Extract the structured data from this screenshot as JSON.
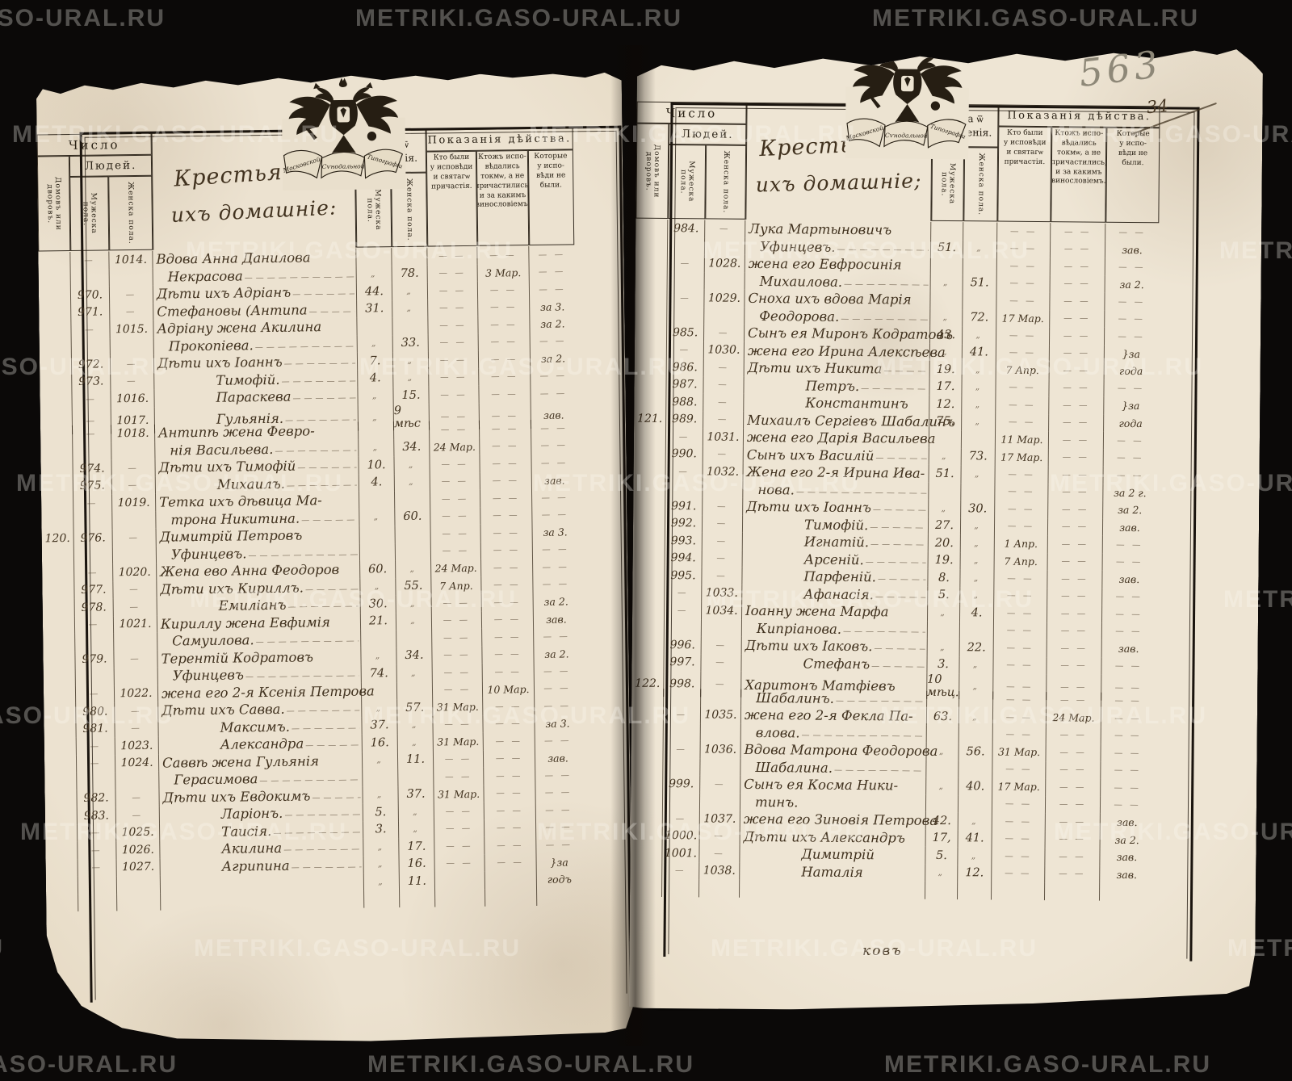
{
  "meta": {
    "archive_watermark": "METRIKI.GASO-URAL.RU",
    "pencil_folio": "563",
    "ink_folio": "34",
    "catchword": "ковъ"
  },
  "emblem": {
    "ribbon": [
      "Московской",
      "Сѵнодальной",
      "Типографіи"
    ]
  },
  "header": {
    "number": "Число",
    "people": "Людей.",
    "households": "Домовъ или дворовъ.",
    "male": "Мужеска пола.",
    "female": "Женска пола.",
    "age": "Лѣта ѿ\nрожденія.",
    "acts": "Показанія дѣйства.",
    "act_confessed": "Кто были\nу исповѣди\nи святагѡ\nпричастія.",
    "act_only": "Ктожъ испо-\nвѣдались\nтокмѡ, а не\nпричастились,\nи за какимъ\nвинословіемъ.",
    "act_absent": "Которые\nу испо-\nвѣди не\nбыли."
  },
  "pages": [
    {
      "side": "left",
      "title": [
        "Крестьяне и",
        "ихъ домашніе:"
      ],
      "rows": [
        {
          "c2": "—",
          "c3": "1014.",
          "n": "Вдова Анна Данилова"
        },
        {
          "n": "Некрасова",
          "i": 2,
          "t": 1,
          "af": "78.",
          "k2": "3 Мар."
        },
        {
          "c2": "970.",
          "c3": "—",
          "n": "Дѣти ихъ Адріанъ",
          "t": 1,
          "am": "44."
        },
        {
          "c2": "971.",
          "c3": "—",
          "n": "Стефановы (Антипа",
          "t": 1,
          "am": "31.",
          "k3": "за 3."
        },
        {
          "c2": "—",
          "c3": "1015.",
          "n": "Адріану жена Акилина",
          "k3": "за 2."
        },
        {
          "n": "Прокопіева.",
          "i": 2,
          "t": 1,
          "af": "33."
        },
        {
          "c2": "972.",
          "c3": "—",
          "n": "Дѣти ихъ Іоаннъ",
          "t": 1,
          "am": "7.",
          "k3": "за 2."
        },
        {
          "c2": "973.",
          "c3": "—",
          "n": "Тимофій.",
          "i": 1,
          "t": 1,
          "am": "4."
        },
        {
          "c2": "—",
          "c3": "1016.",
          "n": "Параскева",
          "i": 1,
          "t": 1,
          "af": "15."
        },
        {
          "c2": "—",
          "c3": "1017.",
          "n": "Гульянія.",
          "i": 1,
          "t": 1,
          "af": "9 мѣс",
          "k3": "зав."
        },
        {
          "c2": "—",
          "c3": "1018.",
          "n": "Антипѣ жена Февро-"
        },
        {
          "n": "нія Васильева.",
          "i": 2,
          "t": 1,
          "af": "34.",
          "k1": "24 Мар."
        },
        {
          "c2": "974.",
          "c3": "—",
          "n": "Дѣти ихъ Тимофій",
          "t": 1,
          "am": "10."
        },
        {
          "c2": "975.",
          "c3": "—",
          "n": "Михаилъ.",
          "i": 1,
          "t": 1,
          "am": "4.",
          "k3": "зав."
        },
        {
          "c2": "—",
          "c3": "1019.",
          "n": "Тетка ихъ дѣвица Ма-"
        },
        {
          "n": "трона Никитина.",
          "i": 2,
          "t": 1,
          "af": "60."
        },
        {
          "c1": "120.",
          "c2": "976.",
          "c3": "—",
          "n": "Димитрій Петровъ",
          "k3": "за 3."
        },
        {
          "n": "Уфинцевъ.",
          "i": 2,
          "t": 1
        },
        {
          "c2": "—",
          "c3": "1020.",
          "n": "Жена ево Анна Феодоров",
          "am": "60.",
          "k1": "24 Мар."
        },
        {
          "c2": "977.",
          "c3": "—",
          "n": "Дѣти ихъ Кириллъ.",
          "t": 1,
          "af": "55.",
          "k1": "7 Апр."
        },
        {
          "c2": "978.",
          "c3": "—",
          "n": "Емиліанъ",
          "i": 1,
          "t": 1,
          "am": "30.",
          "k3": "за 2."
        },
        {
          "c2": "—",
          "c3": "1021.",
          "n": "Кириллу жена Евфимія",
          "am": "21.",
          "k3": "зав."
        },
        {
          "n": "Самуилова.",
          "i": 2,
          "t": 1
        },
        {
          "c2": "979.",
          "c3": "—",
          "n": "Терентій Кодратовъ",
          "af": "34.",
          "k3": "за 2."
        },
        {
          "n": "Уфинцевъ",
          "i": 2,
          "t": 1,
          "am": "74."
        },
        {
          "c2": "—",
          "c3": "1022.",
          "n": "жена его 2-я Ксенія Петрова",
          "k2": "10 Мар."
        },
        {
          "c2": "980.",
          "c3": "—",
          "n": "Дѣти ихъ Савва.",
          "t": 1,
          "af": "57.",
          "k1": "31 Мар."
        },
        {
          "c2": "981.",
          "c3": "—",
          "n": "Максимъ.",
          "i": 1,
          "t": 1,
          "am": "37.",
          "k3": "за 3."
        },
        {
          "c2": "—",
          "c3": "1023.",
          "n": "Александра",
          "i": 1,
          "t": 1,
          "am": "16.",
          "k1": "31 Мар."
        },
        {
          "c2": "—",
          "c3": "1024.",
          "n": "Саввѣ жена Гульянія",
          "af": "11.",
          "k3": "зав."
        },
        {
          "n": "Герасимова",
          "i": 2,
          "t": 1
        },
        {
          "c2": "982.",
          "c3": "—",
          "n": "Дѣти ихъ Евдокимъ",
          "t": 1,
          "af": "37.",
          "k1": "31 Мар."
        },
        {
          "c2": "983.",
          "c3": "—",
          "n": "Ларіонъ.",
          "i": 1,
          "t": 1,
          "am": "5."
        },
        {
          "c2": "—",
          "c3": "1025.",
          "n": "Таисія.",
          "i": 1,
          "t": 1,
          "am": "3."
        },
        {
          "c2": "—",
          "c3": "1026.",
          "n": "Акилина",
          "i": 1,
          "t": 1,
          "af": "17."
        },
        {
          "c2": "—",
          "c3": "1027.",
          "n": "Агрипина",
          "i": 1,
          "t": 1,
          "af": "16.",
          "k3": "}за"
        },
        {
          "af": "11.",
          "k3": "годъ"
        }
      ]
    },
    {
      "side": "right",
      "title": [
        "Крестьяне и",
        "ихъ домашніе;"
      ],
      "rows": [
        {
          "c2": "984.",
          "c3": "—",
          "n": "Лука Мартыновичъ"
        },
        {
          "n": "Уфинцевъ.",
          "i": 2,
          "t": 1,
          "am": "51.",
          "k3": "зав."
        },
        {
          "c2": "—",
          "c3": "1028.",
          "n": "жена его Евфросинія"
        },
        {
          "n": "Михаилова.",
          "i": 2,
          "t": 1,
          "af": "51.",
          "k3": "за 2."
        },
        {
          "c2": "—",
          "c3": "1029.",
          "n": "Сноха ихъ вдова Марія"
        },
        {
          "n": "Феодорова.",
          "i": 2,
          "t": 1,
          "af": "72.",
          "k1": "17 Мар."
        },
        {
          "c2": "985.",
          "c3": "—",
          "n": "Сынъ ея Миронъ Кодратовъ",
          "am": "43."
        },
        {
          "c2": "—",
          "c3": "1030.",
          "n": "жена его Ирина Алексѣева",
          "af": "41.",
          "k3": "}за"
        },
        {
          "c2": "986.",
          "c3": "—",
          "n": "Дѣти ихъ Никита",
          "t": 1,
          "am": "19.",
          "k1": "7 Апр.",
          "k3": "года"
        },
        {
          "c2": "987.",
          "c3": "—",
          "n": "Петръ.",
          "i": 1,
          "t": 1,
          "am": "17."
        },
        {
          "c2": "988.",
          "c3": "—",
          "n": "Константинъ",
          "i": 1,
          "am": "12.",
          "k3": "}за"
        },
        {
          "c1": "121.",
          "c2": "989.",
          "c3": "—",
          "n": "Михаилъ Сергіевъ Шабалинъ",
          "am": "75.",
          "k3": "года"
        },
        {
          "c2": "—",
          "c3": "1031.",
          "n": "жена его Дарія Васильева",
          "k1": "11 Мар."
        },
        {
          "c2": "990.",
          "c3": "—",
          "n": "Сынъ ихъ Василій",
          "t": 1,
          "af": "73.",
          "k1": "17 Мар."
        },
        {
          "c2": "—",
          "c3": "1032.",
          "n": "Жена его 2-я Ирина Ива-",
          "am": "51."
        },
        {
          "n": "нова.",
          "i": 2,
          "t": 1,
          "k3": "за 2 г."
        },
        {
          "c2": "991.",
          "c3": "—",
          "n": "Дѣти ихъ Іоаннъ",
          "t": 1,
          "af": "30.",
          "k3": "за 2."
        },
        {
          "c2": "992.",
          "c3": "—",
          "n": "Тимофій.",
          "i": 1,
          "t": 1,
          "am": "27.",
          "k3": "зав."
        },
        {
          "c2": "993.",
          "c3": "—",
          "n": "Игнатій.",
          "i": 1,
          "t": 1,
          "am": "20.",
          "k1": "1 Апр."
        },
        {
          "c2": "994.",
          "c3": "—",
          "n": "Арсеній.",
          "i": 1,
          "t": 1,
          "am": "19.",
          "k1": "7 Апр."
        },
        {
          "c2": "995.",
          "c3": "—",
          "n": "Парфеній.",
          "i": 1,
          "t": 1,
          "am": "8.",
          "k3": "зав."
        },
        {
          "c2": "—",
          "c3": "1033.",
          "n": "Афанасія.",
          "i": 1,
          "t": 1,
          "am": "5."
        },
        {
          "c2": "—",
          "c3": "1034.",
          "n": "Іоанну жена Марфа",
          "af": "4."
        },
        {
          "n": "Кипріанова.",
          "i": 2,
          "t": 1
        },
        {
          "c2": "996.",
          "c3": "—",
          "n": "Дѣти ихъ Іаковъ.",
          "t": 1,
          "af": "22.",
          "k3": "зав."
        },
        {
          "c2": "997.",
          "c3": "—",
          "n": "Стефанъ",
          "i": 1,
          "t": 1,
          "am": "3."
        },
        {
          "c1": "122.",
          "c2": "998.",
          "c3": "—",
          "n": "Харитонъ Матфіевъ",
          "am": "10 мѣц."
        },
        {
          "n": "Шабалинъ.",
          "i": 2,
          "t": 1
        },
        {
          "c2": "—",
          "c3": "1035.",
          "n": "жена его 2-я Фекла Па-",
          "am": "63.",
          "k2": "24 Мар."
        },
        {
          "n": "влова.",
          "i": 2,
          "t": 1
        },
        {
          "c2": "—",
          "c3": "1036.",
          "n": "Вдова Матрона Феодорова",
          "af": "56.",
          "k1": "31 Мар."
        },
        {
          "n": "Шабалина.",
          "i": 2,
          "t": 1
        },
        {
          "c2": "999.",
          "c3": "—",
          "n": "Сынъ ея Косма Ники-",
          "af": "40.",
          "k1": "17 Мар."
        },
        {
          "n": "тинъ.",
          "i": 2
        },
        {
          "c2": "—",
          "c3": "1037.",
          "n": "жена его Зиновія Петрова",
          "am": "42.",
          "k3": "зав."
        },
        {
          "c2": "1000.",
          "c3": "—",
          "n": "Дѣти ихъ Александръ",
          "am": "17,",
          "af": "41.",
          "k3": "за 2."
        },
        {
          "c2": "1001.",
          "c3": "—",
          "n": "Димитрій",
          "i": 1,
          "am": "5.",
          "k3": "зав."
        },
        {
          "c2": "—",
          "c3": "1038.",
          "n": "Наталія",
          "i": 1,
          "af": "12.",
          "k3": "зав."
        }
      ]
    }
  ]
}
